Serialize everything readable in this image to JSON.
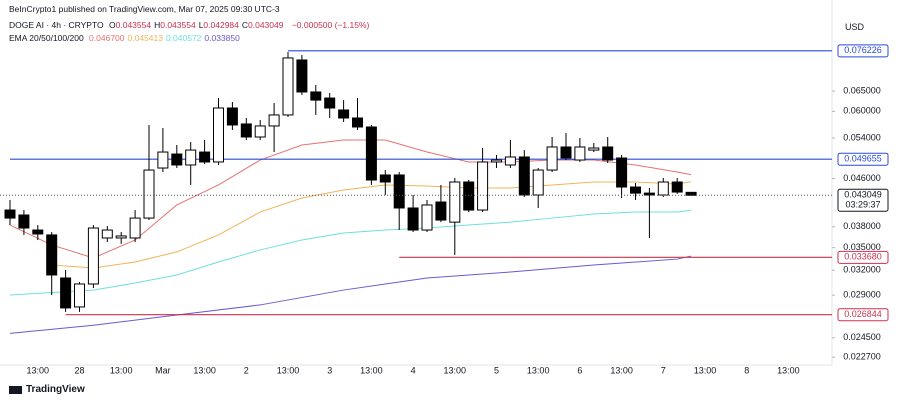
{
  "header": {
    "publisher": "BeInCrypto1 published on TradingView.com, Mar 07, 2025 09:30 UTC-3",
    "symbol": "DOGE AI · 4h · CRYPTO",
    "ohlc": [
      {
        "label": "O",
        "value": "0.043554"
      },
      {
        "label": "H",
        "value": "0.043554"
      },
      {
        "label": "L",
        "value": "0.042984"
      },
      {
        "label": "C",
        "value": "0.043049"
      }
    ],
    "change": "−0.000500 (−1.15%)",
    "ema_title": "EMA 20/50/100/200",
    "currency": "USD",
    "footer": "TradingView"
  },
  "chart_data": {
    "type": "candlestick",
    "log_scale": true,
    "grid": false,
    "up_color": "#ffffff",
    "down_color": "#000000",
    "ylim": [
      0.022,
      0.0932
    ],
    "yticks": [
      {
        "value": 0.065,
        "label": "0.065000"
      },
      {
        "value": 0.06,
        "label": "0.060000"
      },
      {
        "value": 0.054,
        "label": "0.054000"
      },
      {
        "value": 0.046,
        "label": "0.046000"
      },
      {
        "value": 0.038,
        "label": "0.038000"
      },
      {
        "value": 0.035,
        "label": "0.035000"
      },
      {
        "value": 0.032,
        "label": "0.032000"
      },
      {
        "value": 0.029,
        "label": "0.029000"
      },
      {
        "value": 0.0245,
        "label": "0.024500"
      },
      {
        "value": 0.0227,
        "label": "0.022700"
      }
    ],
    "categories": [
      null,
      null,
      "13:00",
      null,
      null,
      "28",
      null,
      null,
      "13:00",
      null,
      null,
      "Mar",
      null,
      null,
      "13:00",
      null,
      null,
      "2",
      null,
      null,
      "13:00",
      null,
      null,
      "3",
      null,
      null,
      "13:00",
      null,
      null,
      "4",
      null,
      null,
      "13:00",
      null,
      null,
      "5",
      null,
      null,
      "13:00",
      null,
      null,
      "6",
      null,
      null,
      "13:00",
      null,
      null,
      "7",
      null,
      null,
      "13:00",
      null,
      null,
      "8",
      null,
      null,
      "13:00"
    ],
    "open": [
      0.04061,
      0.03982,
      0.03752,
      0.0368,
      0.03104,
      0.02768,
      0.03031,
      0.03636,
      0.03636,
      0.03636,
      0.03934,
      0.04795,
      0.05068,
      0.04853,
      0.05108,
      0.04911,
      0.0608,
      0.05708,
      0.05421,
      0.05663,
      0.05915,
      0.07352,
      0.06478,
      0.06324,
      0.06032,
      0.05844,
      0.0564,
      0.04665,
      0.04665,
      0.04094,
      0.03752,
      0.04192,
      0.03871,
      0.04537,
      0.04061,
      0.04911,
      0.04853,
      0.05009,
      0.0431,
      0.04757,
      0.05211,
      0.04949,
      0.05148,
      0.05211,
      0.04989,
      0.04448,
      0.04342,
      0.0431,
      0.04537,
      0.043554,
      null,
      null,
      null,
      null,
      null,
      null,
      null
    ],
    "high": [
      0.04225,
      0.04061,
      0.03827,
      0.03723,
      0.03203,
      0.03055,
      0.03827,
      0.03812,
      0.03723,
      0.04061,
      0.05685,
      0.05618,
      0.05252,
      0.05315,
      0.05357,
      0.06324,
      0.06225,
      0.05844,
      0.05797,
      0.06201,
      0.07588,
      0.075,
      0.0666,
      0.06452,
      0.06273,
      0.06324,
      0.05685,
      0.04757,
      0.0472,
      0.0431,
      0.04225,
      0.04484,
      0.0461,
      0.04573,
      0.0519,
      0.05048,
      0.05357,
      0.05148,
      0.04795,
      0.05421,
      0.05508,
      0.054,
      0.05294,
      0.05421,
      0.05048,
      0.0452,
      0.0443,
      0.0461,
      0.0461,
      0.043554,
      null,
      null,
      null,
      null,
      null,
      null,
      null
    ],
    "low": [
      0.03827,
      0.0368,
      0.03607,
      0.02902,
      0.02714,
      0.02714,
      0.02983,
      0.03579,
      0.03552,
      0.03579,
      0.03903,
      0.0472,
      0.04795,
      0.04484,
      0.04873,
      0.04853,
      0.05573,
      0.05357,
      0.05357,
      0.05108,
      0.05868,
      0.06401,
      0.05915,
      0.05844,
      0.05752,
      0.05573,
      0.04484,
      0.0431,
      0.03752,
      0.03723,
      0.03723,
      0.03871,
      0.034,
      0.04029,
      0.04029,
      0.04795,
      0.04795,
      0.04276,
      0.04094,
      0.0472,
      0.04949,
      0.04911,
      0.05108,
      0.04892,
      0.04259,
      0.04225,
      0.03636,
      0.04276,
      0.04328,
      0.042984,
      null,
      null,
      null,
      null,
      null,
      null,
      null
    ],
    "close": [
      0.03934,
      0.03782,
      0.03694,
      0.03141,
      0.02757,
      0.03031,
      0.03782,
      0.03752,
      0.03665,
      0.03934,
      0.04757,
      0.05108,
      0.04853,
      0.05148,
      0.04911,
      0.0608,
      0.05685,
      0.05421,
      0.05663,
      0.05915,
      0.07411,
      0.06478,
      0.06273,
      0.0608,
      0.05844,
      0.0564,
      0.04573,
      0.04537,
      0.04094,
      0.03752,
      0.04143,
      0.03903,
      0.04537,
      0.04061,
      0.04911,
      0.04949,
      0.05009,
      0.0431,
      0.04757,
      0.05211,
      0.04989,
      0.05211,
      0.0519,
      0.04949,
      0.04448,
      0.04342,
      0.0431,
      0.04537,
      0.0436,
      0.043049,
      null,
      null,
      null,
      null,
      null,
      null,
      null
    ],
    "series": [
      {
        "color": "#e57373",
        "legend_value": "0.046700",
        "x": [
          0,
          3,
          6,
          9,
          12,
          15,
          18,
          21,
          24,
          27,
          30,
          33,
          36,
          39,
          42,
          45,
          48,
          49
        ],
        "values": [
          0.03827,
          0.03537,
          0.03359,
          0.03607,
          0.04143,
          0.04484,
          0.04949,
          0.05252,
          0.05357,
          0.05357,
          0.05108,
          0.04911,
          0.04911,
          0.04949,
          0.04949,
          0.04853,
          0.0472,
          0.0467
        ]
      },
      {
        "color": "#f0b45a",
        "legend_value": "0.045413",
        "x": [
          3,
          6,
          9,
          12,
          15,
          18,
          21,
          24,
          27,
          30,
          33,
          36,
          39,
          42,
          45,
          48,
          49
        ],
        "values": [
          0.03267,
          0.03229,
          0.03306,
          0.03441,
          0.0368,
          0.04029,
          0.04259,
          0.04395,
          0.04484,
          0.04466,
          0.0443,
          0.0443,
          0.04484,
          0.04537,
          0.04537,
          0.04501,
          0.045413
        ]
      },
      {
        "color": "#6fe0dc",
        "legend_value": "0.040572",
        "x": [
          0,
          6,
          9,
          12,
          15,
          18,
          21,
          24,
          27,
          30,
          33,
          36,
          39,
          42,
          45,
          48,
          49
        ],
        "values": [
          0.02902,
          0.02959,
          0.03043,
          0.03141,
          0.03306,
          0.03468,
          0.03607,
          0.03708,
          0.03752,
          0.03782,
          0.03827,
          0.03871,
          0.03934,
          0.03997,
          0.04029,
          0.04029,
          0.040572
        ]
      },
      {
        "color": "#6a5acd",
        "legend_value": "0.033850",
        "x": [
          0,
          6,
          12,
          18,
          24,
          30,
          36,
          42,
          48,
          49
        ],
        "values": [
          0.02493,
          0.02575,
          0.02681,
          0.0279,
          0.02959,
          0.03104,
          0.03178,
          0.03267,
          0.03345,
          0.03385
        ]
      }
    ],
    "levels": [
      {
        "value": 0.076226,
        "label": "0.076226",
        "color": "#2a4bd7",
        "from": 20
      },
      {
        "value": 0.049655,
        "label": "0.049655",
        "color": "#2a4bd7",
        "from": 0
      },
      {
        "value": 0.03368,
        "label": "0.033680",
        "color": "#c8324e",
        "from": 28
      },
      {
        "value": 0.026844,
        "label": "0.026844",
        "color": "#c8324e",
        "from": 4
      }
    ],
    "last_price_label": "0.043049",
    "countdown": "03:29:37"
  }
}
